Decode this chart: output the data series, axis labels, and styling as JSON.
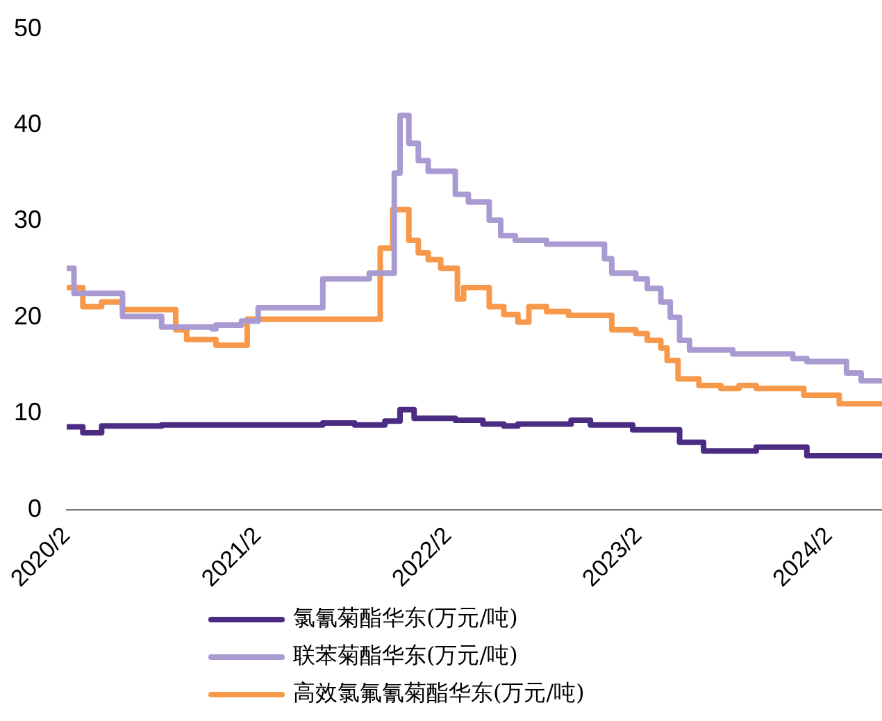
{
  "chart_data": {
    "type": "step",
    "xlim": [
      "2020-02-01",
      "2024-05-13"
    ],
    "xticks": [
      {
        "value": "2020-02",
        "label": "2020/2"
      },
      {
        "value": "2021-02",
        "label": "2021/2"
      },
      {
        "value": "2022-02",
        "label": "2022/2"
      },
      {
        "value": "2023-02",
        "label": "2023/2"
      },
      {
        "value": "2024-02",
        "label": "2024/2"
      }
    ],
    "ylim": [
      0,
      50
    ],
    "yticks": [
      0,
      10,
      20,
      30,
      40,
      50
    ],
    "grid": false,
    "legend": "bottom",
    "series": [
      {
        "name": "氯氰菊酯华东(万元/吨)",
        "color": "#4b2c82",
        "x": [
          "2020-02-01",
          "2020-03-03",
          "2020-04-08",
          "2020-08-01",
          "2021-06-06",
          "2021-08-06",
          "2021-10-03",
          "2021-10-12",
          "2021-11-01",
          "2021-11-28",
          "2022-02-15",
          "2022-04-09",
          "2022-05-19",
          "2022-06-15",
          "2022-09-25",
          "2022-11-01",
          "2023-01-21",
          "2023-04-21",
          "2023-06-06",
          "2023-09-15",
          "2023-12-21",
          "2024-05-13"
        ],
        "values": [
          8.6,
          8.0,
          8.7,
          8.8,
          9.0,
          8.8,
          9.2,
          9.2,
          10.4,
          9.5,
          9.3,
          8.9,
          8.7,
          8.9,
          9.3,
          8.8,
          8.3,
          7.0,
          6.1,
          6.5,
          5.6,
          5.6
        ]
      },
      {
        "name": "联苯菊酯华东(万元/吨)",
        "color": "#a99bd1",
        "x": [
          "2020-02-01",
          "2020-02-15",
          "2020-05-18",
          "2020-08-01",
          "2020-11-06",
          "2020-11-13",
          "2021-01-01",
          "2021-02-02",
          "2021-06-06",
          "2021-09-03",
          "2021-10-21",
          "2021-11-01",
          "2021-11-18",
          "2021-12-06",
          "2021-12-25",
          "2022-02-15",
          "2022-03-12",
          "2022-04-21",
          "2022-05-13",
          "2022-06-10",
          "2022-08-09",
          "2022-11-01",
          "2022-11-28",
          "2022-12-12",
          "2023-01-27",
          "2023-02-18",
          "2023-03-16",
          "2023-04-03",
          "2023-04-21",
          "2023-05-10",
          "2023-08-01",
          "2023-11-24",
          "2023-12-21",
          "2024-03-06",
          "2024-04-03",
          "2024-05-13"
        ],
        "values": [
          25.1,
          22.5,
          20.1,
          19.0,
          18.8,
          19.2,
          19.6,
          21.0,
          24.0,
          24.6,
          35.0,
          41.0,
          38.1,
          36.3,
          35.2,
          32.8,
          32.0,
          30.1,
          28.5,
          28.0,
          27.6,
          27.6,
          26.1,
          24.6,
          24.0,
          23.0,
          21.6,
          20.0,
          17.6,
          16.6,
          16.2,
          15.7,
          15.4,
          14.2,
          13.4,
          13.4
        ]
      },
      {
        "name": "高效氯氟氰菊酯华东(万元/吨)",
        "color": "#f7984a",
        "x": [
          "2020-02-01",
          "2020-03-03",
          "2020-04-08",
          "2020-05-18",
          "2020-08-28",
          "2020-09-18",
          "2020-11-13",
          "2021-01-12",
          "2021-09-24",
          "2021-10-18",
          "2021-11-18",
          "2021-12-06",
          "2021-12-25",
          "2022-01-18",
          "2022-02-19",
          "2022-03-03",
          "2022-04-21",
          "2022-05-19",
          "2022-06-15",
          "2022-07-06",
          "2022-08-09",
          "2022-09-20",
          "2022-12-12",
          "2023-01-27",
          "2023-02-18",
          "2023-03-16",
          "2023-03-28",
          "2023-04-18",
          "2023-05-28",
          "2023-07-09",
          "2023-08-13",
          "2023-09-15",
          "2023-12-15",
          "2024-02-21",
          "2024-05-13"
        ],
        "values": [
          23.1,
          21.1,
          21.6,
          20.8,
          18.7,
          17.7,
          17.1,
          19.8,
          27.2,
          31.2,
          28.0,
          26.7,
          26.0,
          25.1,
          21.9,
          23.1,
          21.1,
          20.3,
          19.5,
          21.1,
          20.6,
          20.2,
          18.7,
          18.3,
          17.6,
          16.8,
          15.5,
          13.6,
          12.9,
          12.6,
          12.9,
          12.6,
          11.9,
          11.0,
          11.0
        ]
      }
    ]
  }
}
